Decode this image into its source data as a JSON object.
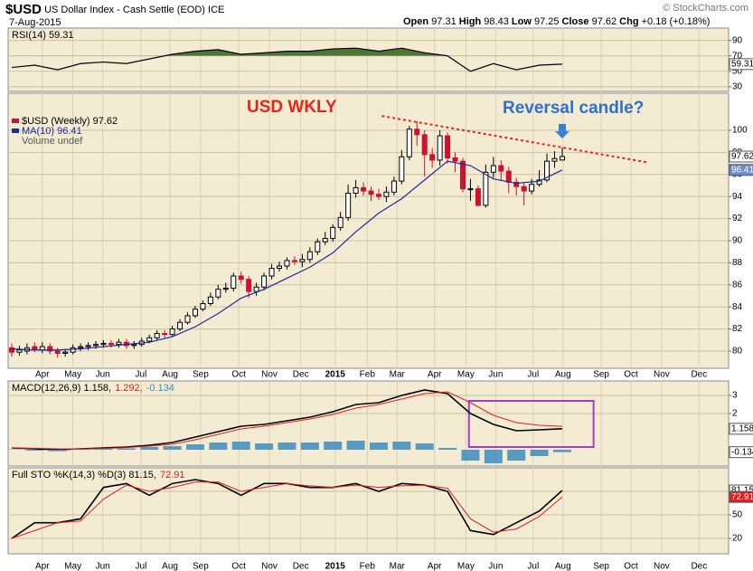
{
  "header": {
    "symbol": "$USD",
    "name": "US Dollar Index - Cash Settle (EOD)",
    "exchange": "ICE",
    "date": "7-Aug-2015",
    "watermark": "© StockCharts.com",
    "quote": {
      "open_label": "Open",
      "open": 97.31,
      "high_label": "High",
      "high": 98.43,
      "low_label": "Low",
      "low": 97.25,
      "close_label": "Close",
      "close": 97.62,
      "change_label": "Chg",
      "change": "+0.18 (+0.18%)"
    }
  },
  "annotations": [
    "USD WKLY",
    "Reversal candle?"
  ],
  "chart_data": [
    {
      "type": "line",
      "ylim": [
        24,
        106
      ],
      "yticks": [
        30,
        50,
        70,
        90
      ],
      "grid": true,
      "fill_above": 70,
      "fill_color": "#4f7536",
      "series": [
        {
          "name": "RSI(14) 59.31",
          "color": "#000000",
          "value_box": {
            "fill": "#ffffff",
            "text": "#000000"
          },
          "x": [
            0,
            3,
            6,
            9,
            12,
            15,
            18,
            21,
            24,
            27,
            30,
            33,
            36,
            39,
            42,
            45,
            48,
            51,
            54,
            57,
            60,
            63,
            66,
            69,
            72
          ],
          "values": [
            55,
            58,
            52,
            60,
            62,
            60,
            66,
            72,
            76,
            78,
            72,
            74,
            76,
            76,
            79,
            80,
            76,
            80,
            74,
            70,
            50,
            60,
            52,
            58,
            59.31
          ]
        }
      ]
    },
    {
      "type": "candlestick",
      "xlim": [
        -0.47,
        93.76
      ],
      "ylim": [
        78.44,
        103.36
      ],
      "yticks": [
        80,
        82,
        84,
        86,
        88,
        90,
        92,
        94,
        96,
        98,
        100
      ],
      "grid": true,
      "xticks": [
        {
          "value": 4.0,
          "label": "Apr"
        },
        {
          "value": 8.0,
          "label": "May"
        },
        {
          "value": 11.9,
          "label": "Jun"
        },
        {
          "value": 16.9,
          "label": "Jul"
        },
        {
          "value": 20.7,
          "label": "Aug"
        },
        {
          "value": 24.7,
          "label": "Sep"
        },
        {
          "value": 29.7,
          "label": "Oct"
        },
        {
          "value": 33.7,
          "label": "Nov"
        },
        {
          "value": 37.8,
          "label": "Dec"
        },
        {
          "value": 42.3,
          "label": "2015"
        },
        {
          "value": 46.5,
          "label": "Feb"
        },
        {
          "value": 50.4,
          "label": "Mar"
        },
        {
          "value": 55.3,
          "label": "Apr"
        },
        {
          "value": 59.4,
          "label": "May"
        },
        {
          "value": 63.3,
          "label": "Jun"
        },
        {
          "value": 68.2,
          "label": "Jul"
        },
        {
          "value": 72.1,
          "label": "Aug"
        },
        {
          "value": 77.1,
          "label": "Sep"
        },
        {
          "value": 81.0,
          "label": "Oct"
        },
        {
          "value": 85.0,
          "label": "Nov"
        },
        {
          "value": 89.9,
          "label": "Dec"
        }
      ],
      "volume_label": "Volume undef",
      "trendline": {
        "x": [
          48.4,
          83.1
        ],
        "y": [
          101.3,
          97.1
        ],
        "color": "#e8231b"
      },
      "series": [
        {
          "name": "$USD (Weekly) 97.62",
          "type": "candlestick",
          "up_color": "#000000",
          "down_color": "#cc1133",
          "value_box": {
            "fill": "#ffffff",
            "text": "#000000"
          },
          "x": [
            0,
            1,
            2,
            3,
            4,
            5,
            6,
            7,
            8,
            9,
            10,
            11,
            12,
            13,
            14,
            15,
            16,
            17,
            18,
            19,
            20,
            21,
            22,
            23,
            24,
            25,
            26,
            27,
            28,
            29,
            30,
            31,
            32,
            33,
            34,
            35,
            36,
            37,
            38,
            39,
            40,
            41,
            42,
            43,
            44,
            45,
            46,
            47,
            48,
            49,
            50,
            51,
            52,
            53,
            54,
            55,
            56,
            57,
            58,
            59,
            60,
            61,
            62,
            63,
            64,
            65,
            66,
            67,
            68,
            69,
            70,
            71,
            72
          ],
          "open": [
            80.3,
            79.9,
            80.0,
            80.4,
            80.1,
            80.4,
            80.0,
            79.8,
            79.9,
            80.3,
            80.4,
            80.5,
            80.6,
            80.7,
            80.6,
            80.8,
            80.5,
            80.6,
            80.9,
            81.2,
            81.6,
            81.5,
            82.0,
            82.6,
            83.2,
            83.8,
            84.3,
            84.9,
            85.6,
            85.7,
            86.8,
            86.5,
            85.4,
            85.8,
            86.8,
            87.5,
            87.7,
            88.2,
            88.1,
            88.3,
            89.0,
            89.9,
            90.2,
            91.2,
            92.1,
            94.3,
            94.8,
            94.5,
            94.2,
            94.0,
            94.4,
            95.4,
            97.6,
            100.1,
            99.6,
            97.8,
            97.3,
            99.5,
            97.5,
            97.2,
            94.7,
            94.7,
            93.2,
            96.2,
            96.8,
            96.3,
            95.3,
            94.9,
            94.5,
            95.1,
            95.5,
            97.2,
            97.31
          ],
          "high": [
            80.7,
            80.5,
            80.7,
            80.8,
            80.8,
            80.7,
            80.3,
            80.2,
            80.6,
            80.7,
            80.8,
            80.9,
            81.0,
            81.0,
            81.1,
            81.1,
            80.9,
            81.2,
            81.5,
            81.9,
            81.9,
            82.3,
            82.9,
            83.5,
            84.1,
            84.6,
            85.3,
            86.0,
            86.2,
            87.1,
            87.2,
            86.8,
            86.2,
            87.1,
            87.9,
            88.1,
            88.5,
            88.6,
            88.8,
            89.4,
            90.2,
            90.8,
            91.5,
            92.6,
            95.1,
            95.5,
            95.3,
            94.9,
            94.7,
            94.9,
            95.8,
            98.2,
            100.4,
            100.8,
            100.0,
            98.4,
            100.0,
            99.8,
            98.0,
            97.5,
            95.6,
            95.0,
            96.9,
            97.6,
            97.3,
            96.7,
            95.7,
            95.3,
            95.6,
            96.4,
            97.9,
            98.1,
            98.43
          ],
          "low": [
            79.5,
            79.6,
            79.7,
            79.9,
            79.8,
            79.7,
            79.4,
            79.5,
            79.7,
            80.0,
            80.1,
            80.2,
            80.3,
            80.3,
            80.3,
            80.2,
            80.2,
            80.4,
            80.7,
            81.0,
            81.2,
            81.3,
            81.8,
            82.4,
            83.0,
            83.6,
            84.1,
            84.7,
            85.3,
            85.4,
            86.1,
            84.8,
            85.0,
            85.5,
            86.5,
            87.2,
            87.4,
            87.8,
            87.6,
            88.0,
            88.7,
            89.6,
            89.9,
            90.9,
            91.8,
            93.9,
            94.1,
            93.6,
            93.7,
            93.5,
            94.1,
            95.1,
            97.3,
            98.6,
            95.8,
            96.6,
            96.8,
            97.0,
            96.2,
            94.4,
            93.6,
            93.1,
            93.0,
            95.7,
            95.4,
            94.3,
            94.1,
            93.2,
            94.2,
            94.9,
            95.3,
            96.6,
            97.25
          ],
          "close": [
            79.9,
            80.1,
            80.3,
            80.2,
            80.4,
            80.0,
            79.8,
            79.9,
            80.3,
            80.4,
            80.5,
            80.6,
            80.7,
            80.6,
            80.8,
            80.5,
            80.6,
            80.9,
            81.2,
            81.6,
            81.5,
            82.0,
            82.6,
            83.2,
            83.8,
            84.3,
            84.9,
            85.6,
            85.7,
            86.8,
            86.5,
            85.4,
            85.8,
            86.8,
            87.5,
            87.7,
            88.2,
            88.1,
            88.3,
            89.0,
            89.9,
            90.2,
            91.2,
            92.1,
            94.3,
            94.8,
            94.5,
            94.2,
            94.0,
            94.4,
            95.4,
            97.6,
            100.1,
            99.6,
            97.8,
            97.3,
            99.5,
            97.5,
            97.2,
            94.7,
            94.7,
            93.2,
            96.2,
            96.8,
            96.3,
            95.3,
            94.9,
            94.5,
            95.1,
            95.5,
            97.2,
            97.44,
            97.62
          ]
        },
        {
          "name": "MA(10) 96.41",
          "type": "line",
          "color": "#1a2c9c",
          "value_box": {
            "fill": "#6d8fd0",
            "text": "#ffffff"
          },
          "x": [
            0,
            3,
            6,
            9,
            12,
            15,
            18,
            21,
            24,
            27,
            30,
            33,
            36,
            39,
            42,
            45,
            48,
            51,
            54,
            57,
            60,
            63,
            66,
            69,
            72
          ],
          "values": [
            80.2,
            80.1,
            80.1,
            80.2,
            80.4,
            80.6,
            80.8,
            81.3,
            82.2,
            83.4,
            84.8,
            85.6,
            86.6,
            87.6,
            88.9,
            90.8,
            92.5,
            93.8,
            95.5,
            97.2,
            96.8,
            95.6,
            95.2,
            95.4,
            96.41
          ]
        }
      ]
    },
    {
      "type": "macd",
      "ylim": [
        -0.9,
        3.8
      ],
      "yticks": [
        2,
        3
      ],
      "grid": true,
      "highlight": {
        "x": [
          59.8,
          76.1
        ],
        "y": [
          0.15,
          2.7
        ],
        "color": "#a43cc4"
      },
      "series": [
        {
          "name": "MACD(12,26,9) 1.158,",
          "type": "line",
          "color": "#000000",
          "width": 1.6,
          "value_box": {
            "fill": "#ffffff",
            "text": "#000000"
          },
          "x": [
            0,
            3,
            6,
            9,
            12,
            15,
            18,
            21,
            24,
            27,
            30,
            33,
            36,
            39,
            42,
            45,
            48,
            51,
            54,
            57,
            60,
            63,
            66,
            69,
            72
          ],
          "values": [
            0.1,
            0.05,
            0.0,
            0.05,
            0.1,
            0.15,
            0.25,
            0.4,
            0.7,
            1.0,
            1.3,
            1.4,
            1.6,
            1.8,
            2.1,
            2.5,
            2.6,
            3.0,
            3.3,
            3.1,
            2.0,
            1.4,
            1.05,
            1.1,
            1.158
          ]
        },
        {
          "name": "1.292,",
          "type": "line",
          "color": "#e02020",
          "width": 1,
          "x": [
            0,
            3,
            6,
            9,
            12,
            15,
            18,
            21,
            24,
            27,
            30,
            33,
            36,
            39,
            42,
            45,
            48,
            51,
            54,
            57,
            60,
            63,
            66,
            69,
            72
          ],
          "values": [
            0.1,
            0.08,
            0.05,
            0.04,
            0.07,
            0.12,
            0.2,
            0.3,
            0.55,
            0.85,
            1.15,
            1.3,
            1.5,
            1.7,
            1.95,
            2.3,
            2.5,
            2.8,
            3.1,
            3.2,
            2.6,
            1.9,
            1.5,
            1.35,
            1.292
          ]
        },
        {
          "name": "-0.134",
          "type": "bar",
          "color": "#3c8cc0",
          "value_box": {
            "fill": "#ffffff",
            "text": "#000000"
          },
          "x": [
            0,
            3,
            6,
            9,
            12,
            15,
            18,
            21,
            24,
            27,
            30,
            33,
            36,
            39,
            42,
            45,
            48,
            51,
            54,
            57,
            60,
            63,
            66,
            69,
            72
          ],
          "values": [
            0.02,
            -0.05,
            -0.08,
            0.02,
            0.05,
            0.08,
            0.15,
            0.2,
            0.3,
            0.4,
            0.45,
            0.35,
            0.4,
            0.4,
            0.45,
            0.5,
            0.4,
            0.45,
            0.35,
            0.1,
            -0.6,
            -0.75,
            -0.6,
            -0.35,
            -0.134
          ]
        }
      ]
    },
    {
      "type": "line",
      "ylim": [
        0.4,
        110
      ],
      "yticks": [
        20,
        50,
        80
      ],
      "grid": true,
      "series": [
        {
          "name": "Full STO %K(14,3) %D(3) 81.15,",
          "color": "#000000",
          "width": 1.6,
          "value_box": {
            "fill": "#ffffff",
            "text": "#000000"
          },
          "x": [
            0,
            3,
            6,
            9,
            12,
            15,
            18,
            21,
            24,
            27,
            30,
            33,
            36,
            39,
            42,
            45,
            48,
            51,
            54,
            57,
            60,
            63,
            66,
            69,
            72
          ],
          "values": [
            20,
            40,
            40,
            45,
            85,
            90,
            75,
            90,
            95,
            90,
            75,
            90,
            90,
            85,
            85,
            90,
            80,
            90,
            88,
            80,
            30,
            25,
            40,
            55,
            81.15
          ]
        },
        {
          "name": "72.91",
          "color": "#e02020",
          "width": 1,
          "value_box": {
            "fill": "#e02020",
            "text": "#ffffff"
          },
          "x": [
            0,
            3,
            6,
            9,
            12,
            15,
            18,
            21,
            24,
            27,
            30,
            33,
            36,
            39,
            42,
            45,
            48,
            51,
            54,
            57,
            60,
            63,
            66,
            69,
            72
          ],
          "values": [
            20,
            30,
            40,
            42,
            70,
            88,
            80,
            85,
            92,
            92,
            80,
            85,
            90,
            87,
            85,
            88,
            85,
            87,
            88,
            84,
            45,
            28,
            32,
            48,
            72.91
          ]
        }
      ]
    }
  ]
}
